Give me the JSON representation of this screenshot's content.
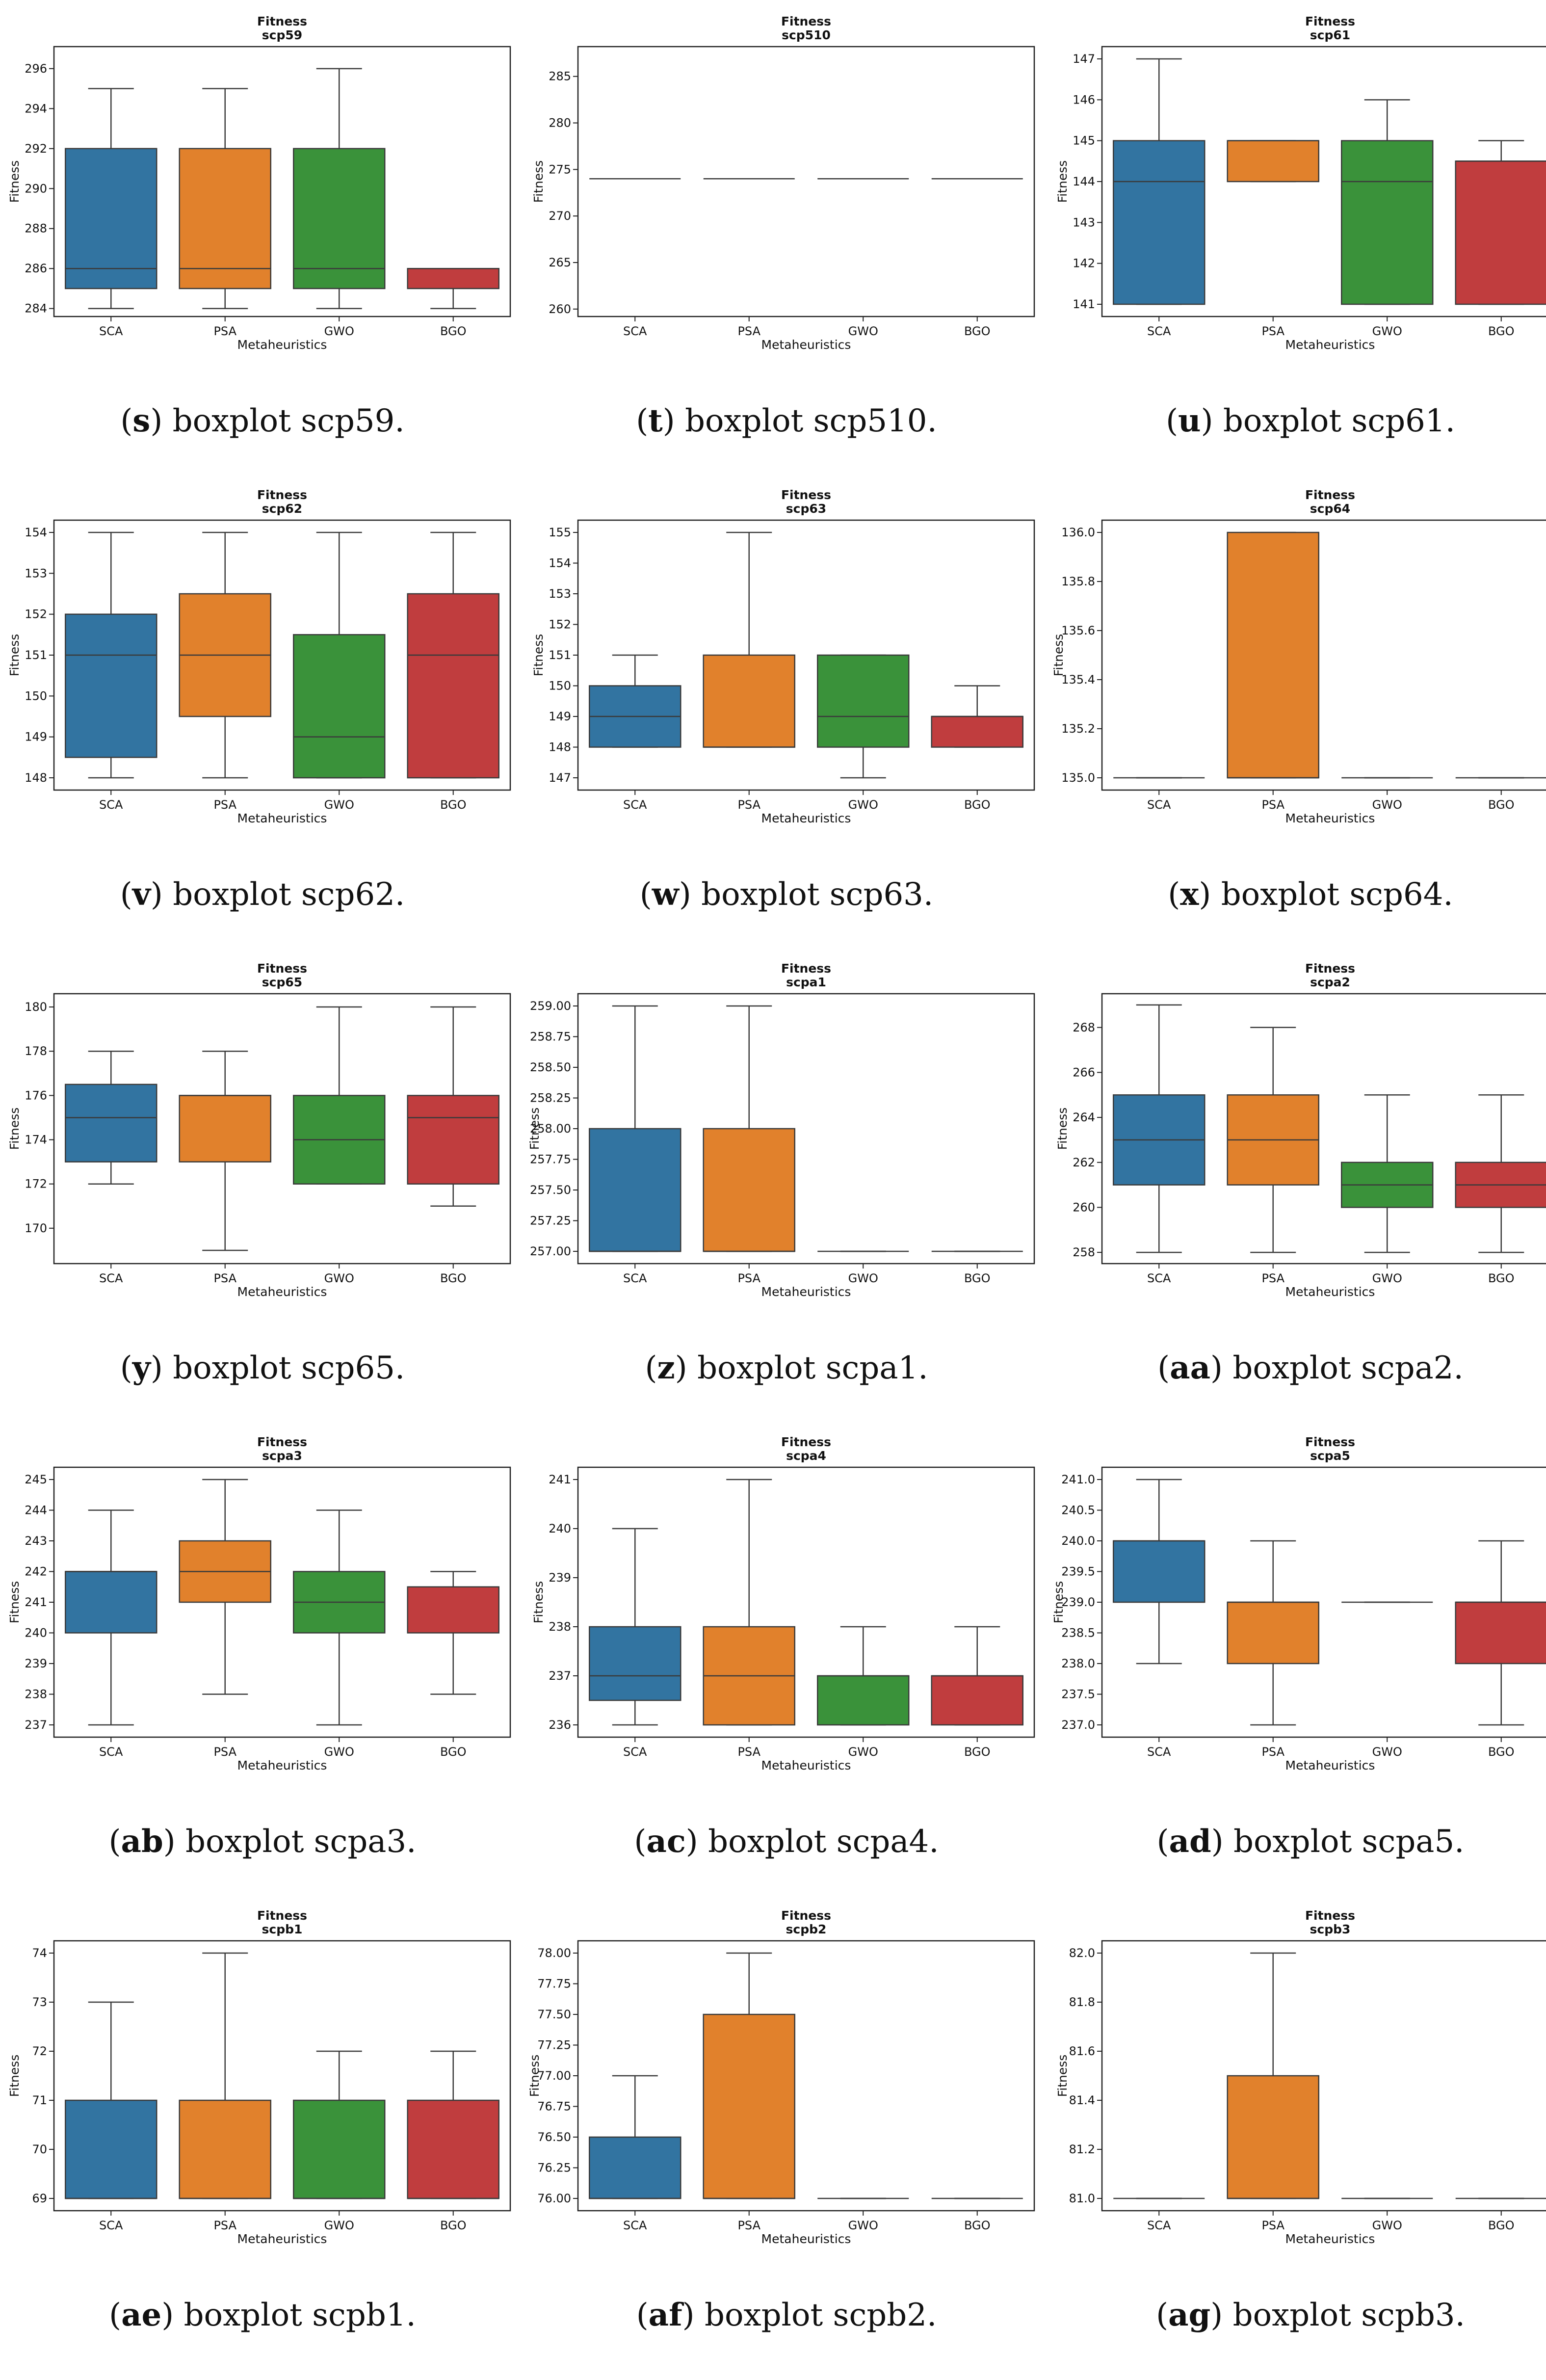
{
  "xlabel": "Metaheuristics",
  "ylabel": "Fitness",
  "title_line1": "Fitness",
  "categories": [
    "SCA",
    "PSA",
    "GWO",
    "BGO"
  ],
  "colors": [
    "#3274a1",
    "#e1812c",
    "#3a923a",
    "#c03d3e"
  ],
  "chart_data": [
    {
      "type": "box",
      "letter": "s",
      "caption": "boxplot scp59.",
      "subtitle": "scp59",
      "ylim": [
        283.6,
        297.1
      ],
      "yticks": [
        284,
        286,
        288,
        290,
        292,
        294,
        296
      ],
      "boxes": [
        {
          "wl": 284,
          "q1": 285,
          "med": 286,
          "q3": 292,
          "wh": 295
        },
        {
          "wl": 284,
          "q1": 285,
          "med": 286,
          "q3": 292,
          "wh": 295
        },
        {
          "wl": 284,
          "q1": 285,
          "med": 286,
          "q3": 292,
          "wh": 296
        },
        {
          "wl": 284,
          "q1": 285,
          "med": 286,
          "q3": 286,
          "wh": 286
        }
      ]
    },
    {
      "type": "box",
      "letter": "t",
      "caption": "boxplot scp510.",
      "subtitle": "scp510",
      "ylim": [
        259.2,
        288.2
      ],
      "yticks": [
        260,
        265,
        270,
        275,
        280,
        285
      ],
      "boxes": [
        {
          "wl": 274,
          "q1": 274,
          "med": 274,
          "q3": 274,
          "wh": 274
        },
        {
          "wl": 274,
          "q1": 274,
          "med": 274,
          "q3": 274,
          "wh": 274
        },
        {
          "wl": 274,
          "q1": 274,
          "med": 274,
          "q3": 274,
          "wh": 274
        },
        {
          "wl": 274,
          "q1": 274,
          "med": 274,
          "q3": 274,
          "wh": 274
        }
      ]
    },
    {
      "type": "box",
      "letter": "u",
      "caption": "boxplot scp61.",
      "subtitle": "scp61",
      "ylim": [
        140.7,
        147.3
      ],
      "yticks": [
        141,
        142,
        143,
        144,
        145,
        146,
        147
      ],
      "boxes": [
        {
          "wl": 141,
          "q1": 141,
          "med": 144,
          "q3": 145,
          "wh": 147
        },
        {
          "wl": 144,
          "q1": 144,
          "med": 145,
          "q3": 145,
          "wh": 145
        },
        {
          "wl": 141,
          "q1": 141,
          "med": 144,
          "q3": 145,
          "wh": 146
        },
        {
          "wl": 141,
          "q1": 141,
          "med": 144.5,
          "q3": 144.5,
          "wh": 145
        }
      ]
    },
    {
      "type": "box",
      "letter": "v",
      "caption": "boxplot scp62.",
      "subtitle": "scp62",
      "ylim": [
        147.7,
        154.3
      ],
      "yticks": [
        148,
        149,
        150,
        151,
        152,
        153,
        154
      ],
      "boxes": [
        {
          "wl": 148,
          "q1": 148.5,
          "med": 151,
          "q3": 152,
          "wh": 154
        },
        {
          "wl": 148,
          "q1": 149.5,
          "med": 151,
          "q3": 152.5,
          "wh": 154
        },
        {
          "wl": 148,
          "q1": 148,
          "med": 149,
          "q3": 151.5,
          "wh": 154
        },
        {
          "wl": 148,
          "q1": 148,
          "med": 151,
          "q3": 152.5,
          "wh": 154
        }
      ]
    },
    {
      "type": "box",
      "letter": "w",
      "caption": "boxplot scp63.",
      "subtitle": "scp63",
      "ylim": [
        146.6,
        155.4
      ],
      "yticks": [
        147,
        148,
        149,
        150,
        151,
        152,
        153,
        154,
        155
      ],
      "boxes": [
        {
          "wl": 148,
          "q1": 148,
          "med": 149,
          "q3": 150,
          "wh": 151
        },
        {
          "wl": 148,
          "q1": 148,
          "med": 148,
          "q3": 151,
          "wh": 155
        },
        {
          "wl": 147,
          "q1": 148,
          "med": 149,
          "q3": 151,
          "wh": 151
        },
        {
          "wl": 148,
          "q1": 148,
          "med": 149,
          "q3": 149,
          "wh": 150
        }
      ]
    },
    {
      "type": "box",
      "letter": "x",
      "caption": "boxplot scp64.",
      "subtitle": "scp64",
      "ylim": [
        134.95,
        136.05
      ],
      "yticks": [
        "135.0",
        "135.2",
        "135.4",
        "135.6",
        "135.8",
        "136.0"
      ],
      "boxes": [
        {
          "wl": 135,
          "q1": 135,
          "med": 135,
          "q3": 135,
          "wh": 135
        },
        {
          "wl": 135,
          "q1": 135,
          "med": 135,
          "q3": 136,
          "wh": 136
        },
        {
          "wl": 135,
          "q1": 135,
          "med": 135,
          "q3": 135,
          "wh": 135
        },
        {
          "wl": 135,
          "q1": 135,
          "med": 135,
          "q3": 135,
          "wh": 135
        }
      ]
    },
    {
      "type": "box",
      "letter": "y",
      "caption": "boxplot scp65.",
      "subtitle": "scp65",
      "ylim": [
        168.4,
        180.6
      ],
      "yticks": [
        170,
        172,
        174,
        176,
        178,
        180
      ],
      "boxes": [
        {
          "wl": 172,
          "q1": 173,
          "med": 175,
          "q3": 176.5,
          "wh": 178
        },
        {
          "wl": 169,
          "q1": 173,
          "med": 176,
          "q3": 176,
          "wh": 178
        },
        {
          "wl": 172,
          "q1": 172,
          "med": 174,
          "q3": 176,
          "wh": 180
        },
        {
          "wl": 171,
          "q1": 172,
          "med": 175,
          "q3": 176,
          "wh": 180
        }
      ]
    },
    {
      "type": "box",
      "letter": "z",
      "caption": "boxplot scpa1.",
      "subtitle": "scpa1",
      "ylim": [
        256.9,
        259.1
      ],
      "yticks": [
        "257.00",
        "257.25",
        "257.50",
        "257.75",
        "258.00",
        "258.25",
        "258.50",
        "258.75",
        "259.00"
      ],
      "boxes": [
        {
          "wl": 257,
          "q1": 257,
          "med": 257,
          "q3": 258,
          "wh": 259
        },
        {
          "wl": 257,
          "q1": 257,
          "med": 257,
          "q3": 258,
          "wh": 259
        },
        {
          "wl": 257,
          "q1": 257,
          "med": 257,
          "q3": 257,
          "wh": 257
        },
        {
          "wl": 257,
          "q1": 257,
          "med": 257,
          "q3": 257,
          "wh": 257
        }
      ]
    },
    {
      "type": "box",
      "letter": "aa",
      "caption": "boxplot scpa2.",
      "subtitle": "scpa2",
      "ylim": [
        257.5,
        269.5
      ],
      "yticks": [
        258,
        260,
        262,
        264,
        266,
        268
      ],
      "boxes": [
        {
          "wl": 258,
          "q1": 261,
          "med": 263,
          "q3": 265,
          "wh": 269
        },
        {
          "wl": 258,
          "q1": 261,
          "med": 263,
          "q3": 265,
          "wh": 268
        },
        {
          "wl": 258,
          "q1": 260,
          "med": 261,
          "q3": 262,
          "wh": 265
        },
        {
          "wl": 258,
          "q1": 260,
          "med": 261,
          "q3": 262,
          "wh": 265
        }
      ]
    },
    {
      "type": "box",
      "letter": "ab",
      "caption": "boxplot scpa3.",
      "subtitle": "scpa3",
      "ylim": [
        236.6,
        245.4
      ],
      "yticks": [
        237,
        238,
        239,
        240,
        241,
        242,
        243,
        244,
        245
      ],
      "boxes": [
        {
          "wl": 237,
          "q1": 240,
          "med": 242,
          "q3": 242,
          "wh": 244
        },
        {
          "wl": 238,
          "q1": 241,
          "med": 242,
          "q3": 243,
          "wh": 245
        },
        {
          "wl": 237,
          "q1": 240,
          "med": 241,
          "q3": 242,
          "wh": 244
        },
        {
          "wl": 238,
          "q1": 240,
          "med": 241.5,
          "q3": 241.5,
          "wh": 242
        }
      ]
    },
    {
      "type": "box",
      "letter": "ac",
      "caption": "boxplot scpa4.",
      "subtitle": "scpa4",
      "ylim": [
        235.75,
        241.25
      ],
      "yticks": [
        236,
        237,
        238,
        239,
        240,
        241
      ],
      "boxes": [
        {
          "wl": 236,
          "q1": 236.5,
          "med": 237,
          "q3": 238,
          "wh": 240
        },
        {
          "wl": 236,
          "q1": 236,
          "med": 237,
          "q3": 238,
          "wh": 241
        },
        {
          "wl": 236,
          "q1": 236,
          "med": 237,
          "q3": 237,
          "wh": 238
        },
        {
          "wl": 236,
          "q1": 236,
          "med": 237,
          "q3": 237,
          "wh": 238
        }
      ]
    },
    {
      "type": "box",
      "letter": "ad",
      "caption": "boxplot scpa5.",
      "subtitle": "scpa5",
      "ylim": [
        236.8,
        241.2
      ],
      "yticks": [
        "237.0",
        "237.5",
        "238.0",
        "238.5",
        "239.0",
        "239.5",
        "240.0",
        "240.5",
        "241.0"
      ],
      "boxes": [
        {
          "wl": 238,
          "q1": 239,
          "med": 240,
          "q3": 240,
          "wh": 241
        },
        {
          "wl": 237,
          "q1": 238,
          "med": 239,
          "q3": 239,
          "wh": 240
        },
        {
          "wl": 239,
          "q1": 239,
          "med": 239,
          "q3": 239,
          "wh": 239
        },
        {
          "wl": 237,
          "q1": 238,
          "med": 239,
          "q3": 239,
          "wh": 240
        }
      ]
    },
    {
      "type": "box",
      "letter": "ae",
      "caption": "boxplot scpb1.",
      "subtitle": "scpb1",
      "ylim": [
        68.75,
        74.25
      ],
      "yticks": [
        69,
        70,
        71,
        72,
        73,
        74
      ],
      "boxes": [
        {
          "wl": 69,
          "q1": 69,
          "med": 69,
          "q3": 71,
          "wh": 73
        },
        {
          "wl": 69,
          "q1": 69,
          "med": 69,
          "q3": 71,
          "wh": 74
        },
        {
          "wl": 69,
          "q1": 69,
          "med": 69,
          "q3": 71,
          "wh": 72
        },
        {
          "wl": 69,
          "q1": 69,
          "med": 69,
          "q3": 71,
          "wh": 72
        }
      ]
    },
    {
      "type": "box",
      "letter": "af",
      "caption": "boxplot scpb2.",
      "subtitle": "scpb2",
      "ylim": [
        75.9,
        78.1
      ],
      "yticks": [
        "76.00",
        "76.25",
        "76.50",
        "76.75",
        "77.00",
        "77.25",
        "77.50",
        "77.75",
        "78.00"
      ],
      "boxes": [
        {
          "wl": 76,
          "q1": 76,
          "med": 76,
          "q3": 76.5,
          "wh": 77
        },
        {
          "wl": 76,
          "q1": 76,
          "med": 76,
          "q3": 77.5,
          "wh": 78
        },
        {
          "wl": 76,
          "q1": 76,
          "med": 76,
          "q3": 76,
          "wh": 76
        },
        {
          "wl": 76,
          "q1": 76,
          "med": 76,
          "q3": 76,
          "wh": 76
        }
      ]
    },
    {
      "type": "box",
      "letter": "ag",
      "caption": "boxplot scpb3.",
      "subtitle": "scpb3",
      "ylim": [
        80.95,
        82.05
      ],
      "yticks": [
        "81.0",
        "81.2",
        "81.4",
        "81.6",
        "81.8",
        "82.0"
      ],
      "boxes": [
        {
          "wl": 81,
          "q1": 81,
          "med": 81,
          "q3": 81,
          "wh": 81
        },
        {
          "wl": 81,
          "q1": 81,
          "med": 81,
          "q3": 81.5,
          "wh": 82
        },
        {
          "wl": 81,
          "q1": 81,
          "med": 81,
          "q3": 81,
          "wh": 81
        },
        {
          "wl": 81,
          "q1": 81,
          "med": 81,
          "q3": 81,
          "wh": 81
        }
      ]
    }
  ]
}
